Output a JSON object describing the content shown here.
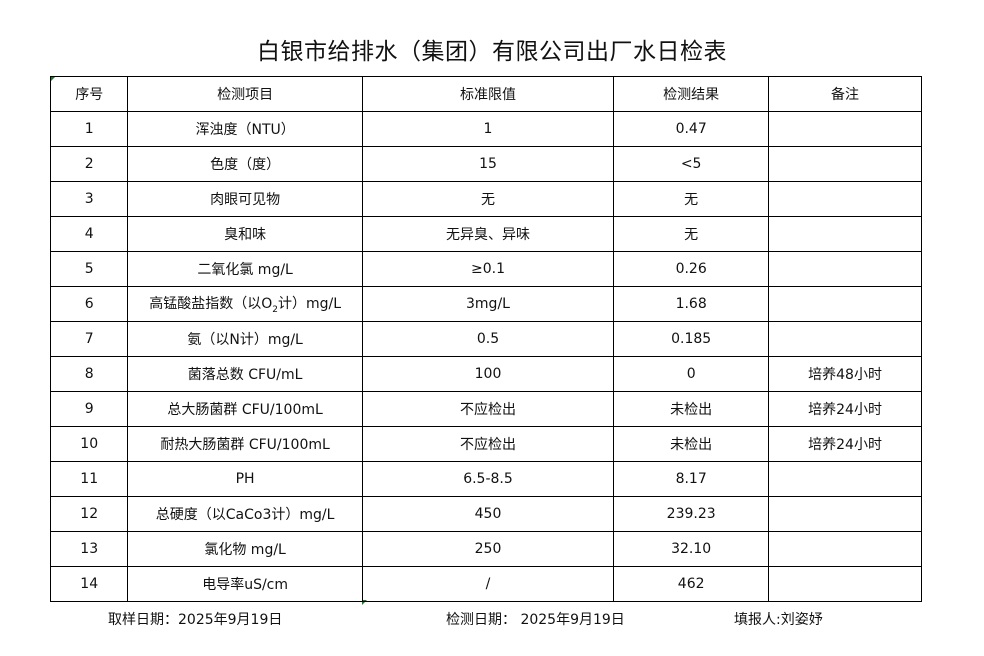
{
  "title": "白银市给排水（集团）有限公司出厂水日检表",
  "headers": [
    "序号",
    "检测项目",
    "标准限值",
    "检测结果",
    "备注"
  ],
  "rows": [
    [
      "1",
      "浑浊度（NTU）",
      "1",
      "0.47",
      ""
    ],
    [
      "2",
      "色度（度）",
      "15",
      "<5",
      ""
    ],
    [
      "3",
      "肉眼可见物",
      "无",
      "无",
      ""
    ],
    [
      "4",
      "臭和味",
      "无异臭、异味",
      "无",
      ""
    ],
    [
      "5",
      "二氧化氯 mg/L",
      "≥0.1",
      "0.26",
      ""
    ],
    [
      "6",
      "高锰酸盐指数（以O₂计）mg/L",
      "3mg/L",
      "1.68",
      ""
    ],
    [
      "7",
      "氨（以N计）mg/L",
      "0.5",
      "0.185",
      ""
    ],
    [
      "8",
      "菌落总数 CFU/mL",
      "100",
      "0",
      "培养48小时"
    ],
    [
      "9",
      "总大肠菌群 CFU/100mL",
      "不应检出",
      "未检出",
      "培养24小时"
    ],
    [
      "10",
      "耐热大肠菌群 CFU/100mL",
      "不应检出",
      "未检出",
      "培养24小时"
    ],
    [
      "11",
      "PH",
      "6.5-8.5",
      "8.17",
      ""
    ],
    [
      "12",
      "总硬度（以CaCo3计）mg/L",
      "450",
      "239.23",
      ""
    ],
    [
      "13",
      "氯化物 mg/L",
      "250",
      "32.10",
      ""
    ],
    [
      "14",
      "电导率uS/cm",
      "/",
      "462",
      ""
    ]
  ],
  "row6_item_parts": {
    "before": "高锰酸盐指数（以O",
    "sub": "2",
    "after": "计）mg/L"
  },
  "footer": {
    "sampling_date": "取样日期：2025年9月19日",
    "test_date": "检测日期：  2025年9月19日",
    "filled_by": "填报人:刘姿妤"
  }
}
